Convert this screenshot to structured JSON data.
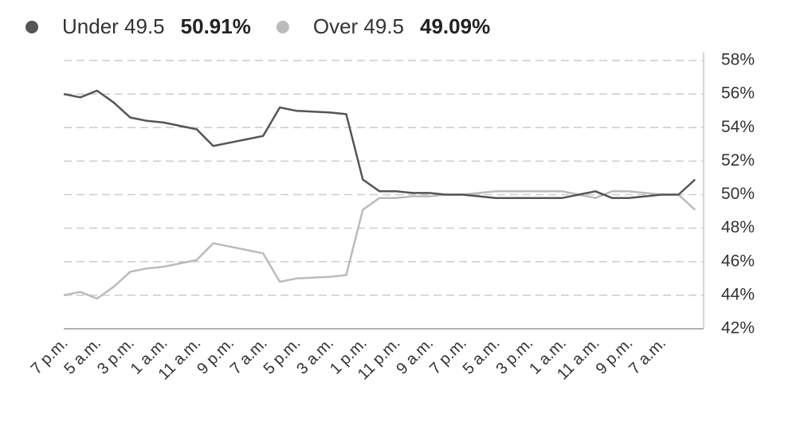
{
  "chart_data": {
    "type": "line",
    "categories": [
      "7 p.m.",
      null,
      "5 a.m.",
      null,
      "3 p.m.",
      null,
      "1 a.m.",
      null,
      "11 a.m.",
      null,
      "9 p.m.",
      null,
      "7 a.m.",
      null,
      "5 p.m.",
      null,
      "3 a.m.",
      null,
      "1 p.m.",
      null,
      "11 p.m.",
      null,
      "9 a.m.",
      null,
      "7 p.m.",
      null,
      "5 a.m.",
      null,
      "3 p.m.",
      null,
      "1 a.m.",
      null,
      "11 a.m.",
      null,
      "9 p.m.",
      null,
      "7 a.m.",
      null,
      null
    ],
    "series": [
      {
        "name": "Under 49.5",
        "value_label": "50.91%",
        "color": "#555555",
        "values": [
          56,
          55.8,
          56.2,
          55.5,
          54.6,
          54.4,
          54.3,
          54.1,
          53.9,
          52.9,
          53.1,
          53.3,
          53.5,
          55.2,
          55,
          54.95,
          54.9,
          54.8,
          50.9,
          50.2,
          50.2,
          50.1,
          50.1,
          50,
          50,
          49.9,
          49.8,
          49.8,
          49.8,
          49.8,
          49.8,
          50,
          50.2,
          49.8,
          49.8,
          49.9,
          50,
          50,
          50.9
        ]
      },
      {
        "name": "Over 49.5",
        "value_label": "49.09%",
        "color": "#bbbbbb",
        "values": [
          44,
          44.2,
          43.8,
          44.5,
          45.4,
          45.6,
          45.7,
          45.9,
          46.1,
          47.1,
          46.9,
          46.7,
          46.5,
          44.8,
          45,
          45.05,
          45.1,
          45.2,
          49.1,
          49.8,
          49.8,
          49.9,
          49.9,
          50,
          50,
          50.1,
          50.2,
          50.2,
          50.2,
          50.2,
          50.2,
          50,
          49.8,
          50.2,
          50.2,
          50.1,
          50,
          50,
          49.09
        ]
      }
    ],
    "ylim": [
      42,
      58
    ],
    "yticks": [
      {
        "value": 42,
        "label": "42%"
      },
      {
        "value": 44,
        "label": "44%"
      },
      {
        "value": 46,
        "label": "46%"
      },
      {
        "value": 48,
        "label": "48%"
      },
      {
        "value": 50,
        "label": "50%"
      },
      {
        "value": 52,
        "label": "52%"
      },
      {
        "value": 54,
        "label": "54%"
      },
      {
        "value": 56,
        "label": "56%"
      },
      {
        "value": 58,
        "label": "58%"
      }
    ],
    "grid": true
  }
}
